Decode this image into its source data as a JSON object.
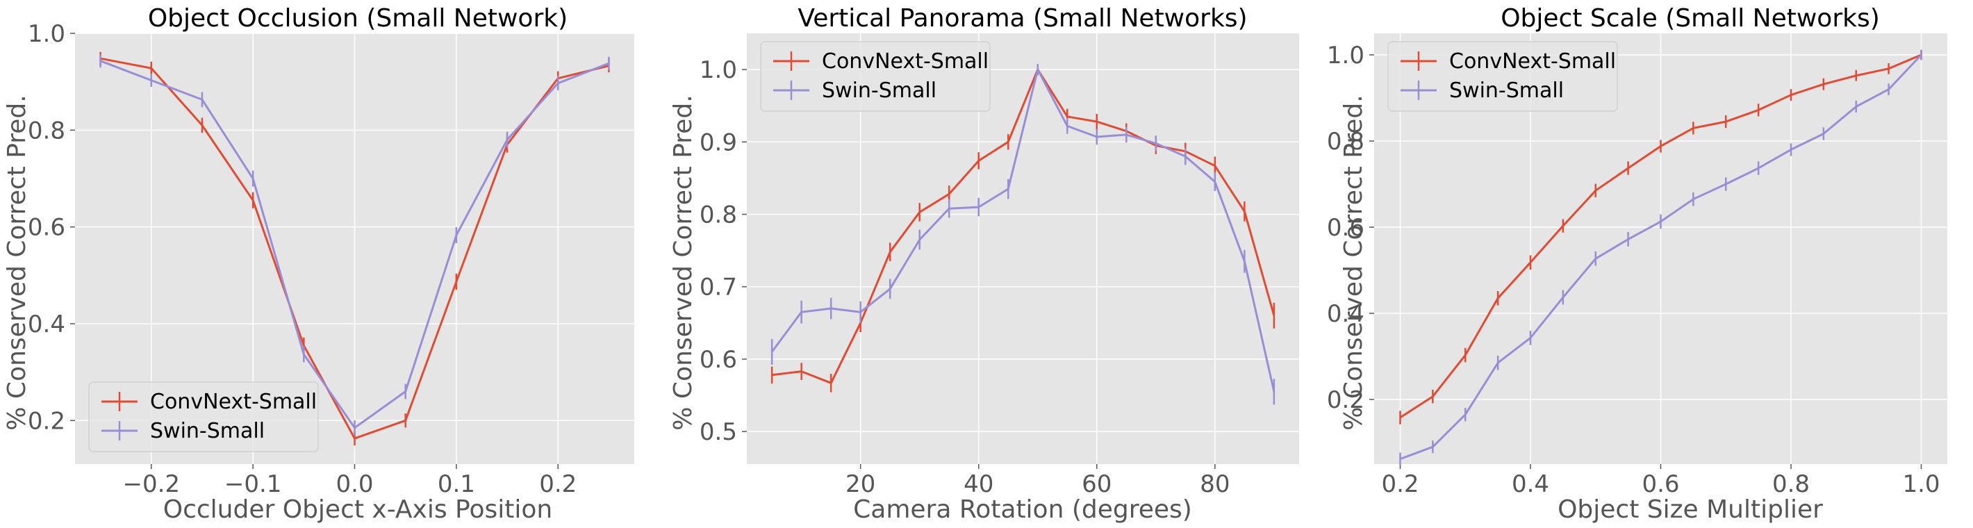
{
  "chart_data": [
    {
      "type": "line",
      "title": "Object Occlusion (Small Network)",
      "xlabel": "Occluder Object x-Axis Position",
      "ylabel": "% Conserved Correct Pred.",
      "xlim": [
        -0.275,
        0.275
      ],
      "ylim": [
        0.11,
        1.0
      ],
      "xticks": [
        -0.2,
        -0.1,
        0.0,
        0.1,
        0.2
      ],
      "xtick_labels": [
        "−0.2",
        "−0.1",
        "0.0",
        "0.1",
        "0.2"
      ],
      "yticks": [
        0.2,
        0.4,
        0.6,
        0.8,
        1.0
      ],
      "ytick_labels": [
        "0.2",
        "0.4",
        "0.6",
        "0.8",
        "1.0"
      ],
      "legend": "lower-left",
      "grid": true,
      "x": [
        -0.25,
        -0.2,
        -0.15,
        -0.1,
        -0.05,
        0.0,
        0.05,
        0.1,
        0.15,
        0.2,
        0.25
      ],
      "series": [
        {
          "name": "ConvNext-Small",
          "color": "#E24A33",
          "values": [
            0.948,
            0.928,
            0.81,
            0.655,
            0.355,
            0.163,
            0.2,
            0.487,
            0.77,
            0.907,
            0.933
          ],
          "err": [
            0.005,
            0.005,
            0.007,
            0.008,
            0.008,
            0.006,
            0.006,
            0.008,
            0.008,
            0.006,
            0.005
          ]
        },
        {
          "name": "Swin-Small",
          "color": "#988ED5",
          "values": [
            0.943,
            0.903,
            0.863,
            0.7,
            0.337,
            0.185,
            0.26,
            0.583,
            0.78,
            0.897,
            0.938
          ],
          "err": [
            0.005,
            0.005,
            0.007,
            0.008,
            0.008,
            0.007,
            0.007,
            0.008,
            0.008,
            0.006,
            0.005
          ]
        }
      ]
    },
    {
      "type": "line",
      "title": "Vertical Panorama (Small Networks)",
      "xlabel": "Camera Rotation (degrees)",
      "ylabel": "% Conserved Correct Pred.",
      "xlim": [
        0.75,
        94.25
      ],
      "ylim": [
        0.455,
        1.05
      ],
      "xticks": [
        20,
        40,
        60,
        80
      ],
      "xtick_labels": [
        "20",
        "40",
        "60",
        "80"
      ],
      "yticks": [
        0.5,
        0.6,
        0.7,
        0.8,
        0.9,
        1.0
      ],
      "ytick_labels": [
        "0.5",
        "0.6",
        "0.7",
        "0.8",
        "0.9",
        "1.0"
      ],
      "legend": "top-left",
      "grid": true,
      "x": [
        5,
        10,
        15,
        20,
        25,
        30,
        35,
        40,
        45,
        50,
        55,
        60,
        65,
        70,
        75,
        80,
        85,
        90
      ],
      "series": [
        {
          "name": "ConvNext-Small",
          "color": "#E24A33",
          "values": [
            0.578,
            0.583,
            0.567,
            0.65,
            0.748,
            0.803,
            0.828,
            0.874,
            0.9,
            1.0,
            0.935,
            0.928,
            0.915,
            0.895,
            0.887,
            0.867,
            0.804,
            0.66
          ],
          "err": [
            0.006,
            0.006,
            0.007,
            0.007,
            0.007,
            0.007,
            0.006,
            0.006,
            0.005,
            0.002,
            0.005,
            0.005,
            0.005,
            0.006,
            0.006,
            0.007,
            0.008,
            0.012
          ]
        },
        {
          "name": "Swin-Small",
          "color": "#988ED5",
          "values": [
            0.61,
            0.665,
            0.67,
            0.665,
            0.697,
            0.765,
            0.808,
            0.81,
            0.835,
            1.0,
            0.922,
            0.907,
            0.91,
            0.898,
            0.88,
            0.845,
            0.735,
            0.555
          ],
          "err": [
            0.012,
            0.01,
            0.009,
            0.009,
            0.008,
            0.008,
            0.007,
            0.007,
            0.008,
            0.002,
            0.005,
            0.005,
            0.005,
            0.005,
            0.006,
            0.007,
            0.01,
            0.012
          ]
        }
      ]
    },
    {
      "type": "line",
      "title": "Object Scale (Small Networks)",
      "xlabel": "Object Size Multiplier",
      "ylabel": "% Conserved Correct Pred.",
      "xlim": [
        0.16,
        1.04
      ],
      "ylim": [
        0.05,
        1.05
      ],
      "xticks": [
        0.2,
        0.4,
        0.6,
        0.8,
        1.0
      ],
      "xtick_labels": [
        "0.2",
        "0.4",
        "0.6",
        "0.8",
        "1.0"
      ],
      "yticks": [
        0.2,
        0.4,
        0.6,
        0.8,
        1.0
      ],
      "ytick_labels": [
        "0.2",
        "0.4",
        "0.6",
        "0.8",
        "1.0"
      ],
      "legend": "top-left",
      "grid": true,
      "x": [
        0.2,
        0.25,
        0.3,
        0.35,
        0.4,
        0.45,
        0.5,
        0.55,
        0.6,
        0.65,
        0.7,
        0.75,
        0.8,
        0.85,
        0.9,
        0.95,
        1.0
      ],
      "series": [
        {
          "name": "ConvNext-Small",
          "color": "#E24A33",
          "values": [
            0.158,
            0.207,
            0.303,
            0.435,
            0.518,
            0.603,
            0.685,
            0.737,
            0.788,
            0.83,
            0.845,
            0.872,
            0.907,
            0.932,
            0.952,
            0.968,
            1.0
          ],
          "err": [
            0.006,
            0.006,
            0.007,
            0.007,
            0.007,
            0.006,
            0.006,
            0.006,
            0.005,
            0.005,
            0.005,
            0.005,
            0.004,
            0.004,
            0.003,
            0.003,
            0.002
          ]
        },
        {
          "name": "Swin-Small",
          "color": "#988ED5",
          "values": [
            0.062,
            0.09,
            0.165,
            0.285,
            0.343,
            0.437,
            0.527,
            0.572,
            0.613,
            0.665,
            0.7,
            0.737,
            0.78,
            0.817,
            0.88,
            0.92,
            1.0
          ],
          "err": [
            0.005,
            0.005,
            0.006,
            0.007,
            0.007,
            0.007,
            0.007,
            0.007,
            0.007,
            0.006,
            0.006,
            0.006,
            0.005,
            0.005,
            0.004,
            0.004,
            0.002
          ]
        }
      ]
    }
  ]
}
